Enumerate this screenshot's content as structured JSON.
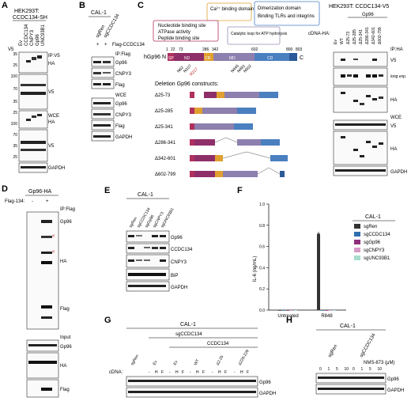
{
  "panels": {
    "A": {
      "letter": "A",
      "cell_line": "HEK293T:",
      "construct": "CCDC134-SH",
      "lane_labels": [
        "Ev",
        "CCDC134",
        "CNPY3",
        "Gp96",
        "UNC93B1"
      ],
      "v5_label": "V5",
      "ip_label": "IP:V5",
      "wce_label": "WCE",
      "blots": [
        "HA",
        "V5",
        "HA",
        "V5",
        "GAPDH"
      ],
      "mw": [
        "35",
        "25",
        "100",
        "70",
        "35",
        "25",
        "100",
        "70",
        "35",
        "25"
      ]
    },
    "B": {
      "letter": "B",
      "cell_line": "CAL-1",
      "lane_labels": [
        "sgRen",
        "sgCCDC134"
      ],
      "flag_label": "Flag-CCDC134",
      "flag_signs": [
        "+",
        "+"
      ],
      "ip_label": "IP:Flag",
      "wce_label": "WCE",
      "blots": [
        "Gp96",
        "CNPY3",
        "Flag",
        "Gp96",
        "CNPY3",
        "Flag",
        "GAPDH"
      ]
    },
    "C": {
      "letter": "C",
      "ca_box": "Ca²⁺ binding domain",
      "left_box": [
        "Nucleotide binding site",
        "ATPase activity",
        "Peptide binding site"
      ],
      "right_box": [
        "Dimerization domain",
        "Binding TLRs and integrins"
      ],
      "loop_box": "Catalytic loop for ATP hydrolysis",
      "protein_label": "hGp96 N",
      "c_term": "C",
      "positions": [
        "1",
        "22",
        "73",
        "286",
        "342",
        "602",
        "800",
        "803"
      ],
      "domains": [
        "SP",
        "ND",
        "CR",
        "MD",
        "CD"
      ],
      "mutations": [
        "N62",
        "N107",
        "R217",
        "N445",
        "N481",
        "N502"
      ],
      "deletion_title": "Deletion Gp96 constructs:",
      "deletions": [
        "Δ25-73",
        "Δ25-285",
        "Δ25-341",
        "Δ286-341",
        "Δ342-601",
        "Δ602-799"
      ],
      "blot_title": "HEK293T: CCDC134-V5",
      "gp96_label": "Gp96",
      "cdna_label": "cDNA-HA:",
      "blot_lanes": [
        "Ev",
        "WT",
        "Δ25-73",
        "Δ25-285",
        "Δ25-341",
        "Δ286-341",
        "Δ342-601",
        "Δ602-799"
      ],
      "ip_label": "IP:HA",
      "long_exp": "long exp.",
      "wce_label": "WCE",
      "blots": [
        "V5",
        "HA",
        "V5",
        "HA",
        "GAPDH"
      ]
    },
    "D": {
      "letter": "D",
      "title": "Gp96-HA",
      "flag_label": "Flag-134:",
      "signs": [
        "-",
        "+"
      ],
      "ip_label": "IP:Flag",
      "input_label": "Input",
      "blots": [
        "Gp96",
        "HA",
        "Flag",
        "Gp96",
        "HA",
        "Flag"
      ]
    },
    "E": {
      "letter": "E",
      "cell_line": "CAL-1",
      "lane_labels": [
        "sgRen",
        "sgCCDC134",
        "sgGp96",
        "sgCNPY3",
        "sgUNC93B1"
      ],
      "blots": [
        "Gp96",
        "CCDC134",
        "CNPY3",
        "BiP",
        "GAPDH"
      ]
    },
    "F": {
      "letter": "F",
      "legend_title": "CAL-1",
      "legend": [
        "sgRen",
        "sgCCDC134",
        "sgGp96",
        "sgCNPY3",
        "sgUNC93B1"
      ]
    },
    "G": {
      "letter": "G",
      "cell_line": "CAL-1",
      "group_label": "sgCCDC134",
      "sub_label": "CCDC134",
      "lane_groups": [
        "sgRen",
        "Ev",
        "Ev",
        "WT",
        "Δ2-25",
        "Δ226-229"
      ],
      "cdna_label": "cDNA:",
      "hf_labels": [
        "-",
        "H",
        "F"
      ],
      "blots": [
        "Gp96",
        "GAPDH"
      ]
    },
    "H": {
      "letter": "H",
      "cell_line": "CAL-1",
      "lane_labels": [
        "sgRen",
        "sgCCDC134"
      ],
      "nms_label": "NMS-873 (μM)",
      "doses": [
        "0",
        "1",
        "5",
        "10",
        "0",
        "1",
        "5",
        "10"
      ],
      "blots": [
        "Gp96",
        "GAPDH"
      ]
    }
  },
  "chart_data": {
    "type": "bar",
    "ylabel": "IL-6 (ng/mL)",
    "ylim": [
      0,
      1.0
    ],
    "yticks": [
      0,
      0.2,
      0.4,
      0.6,
      0.8,
      1.0
    ],
    "categories": [
      "Untreated",
      "R848"
    ],
    "series": [
      {
        "name": "sgRen",
        "color": "#333333",
        "values": [
          0.0,
          0.72
        ]
      },
      {
        "name": "sgCCDC134",
        "color": "#2f6fb0",
        "values": [
          0.0,
          0.0
        ]
      },
      {
        "name": "sgGp96",
        "color": "#8e2f7a",
        "values": [
          0.0,
          0.0
        ]
      },
      {
        "name": "sgCNPY3",
        "color": "#d79ac8",
        "values": [
          0.0,
          0.0
        ]
      },
      {
        "name": "sgUNC93B1",
        "color": "#a8dccd",
        "values": [
          0.0,
          0.0
        ]
      }
    ]
  }
}
